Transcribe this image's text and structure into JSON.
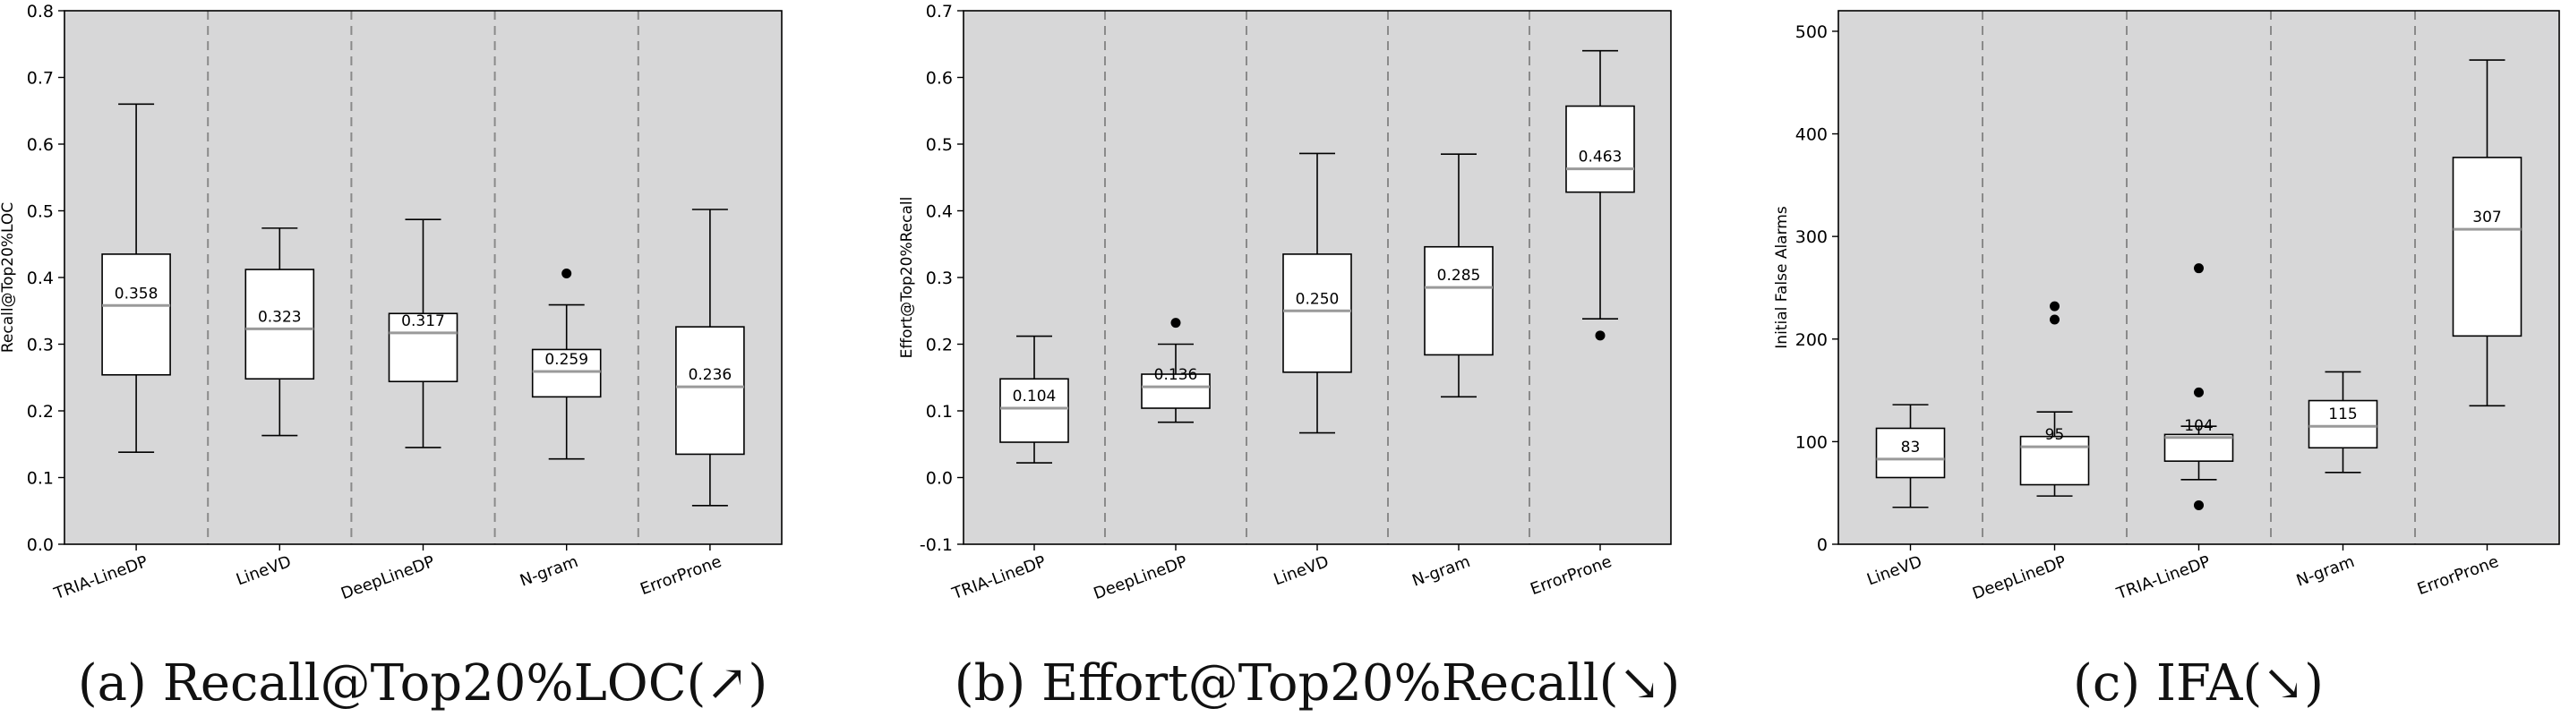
{
  "chart_data": [
    {
      "type": "box",
      "caption": "(a) Recall@Top20%LOC(↗)",
      "ylabel": "Recall@Top20%LOC",
      "ylim": [
        0.0,
        0.8
      ],
      "yticks": [
        "0.0",
        "0.1",
        "0.2",
        "0.3",
        "0.4",
        "0.5",
        "0.6",
        "0.7",
        "0.8"
      ],
      "ytick_values": [
        0.0,
        0.1,
        0.2,
        0.3,
        0.4,
        0.5,
        0.6,
        0.7,
        0.8
      ],
      "categories": [
        "TRIA-LineDP",
        "LineVD",
        "DeepLineDP",
        "N-gram",
        "ErrorProne"
      ],
      "boxes": [
        {
          "whisker_low": 0.138,
          "q1": 0.254,
          "median": 0.358,
          "q3": 0.435,
          "whisker_high": 0.66,
          "label": "0.358",
          "outliers": []
        },
        {
          "whisker_low": 0.163,
          "q1": 0.248,
          "median": 0.323,
          "q3": 0.412,
          "whisker_high": 0.474,
          "label": "0.323",
          "outliers": []
        },
        {
          "whisker_low": 0.145,
          "q1": 0.244,
          "median": 0.317,
          "q3": 0.346,
          "whisker_high": 0.487,
          "label": "0.317",
          "outliers": []
        },
        {
          "whisker_low": 0.128,
          "q1": 0.221,
          "median": 0.259,
          "q3": 0.292,
          "whisker_high": 0.359,
          "label": "0.259",
          "outliers": [
            0.406
          ]
        },
        {
          "whisker_low": 0.058,
          "q1": 0.135,
          "median": 0.236,
          "q3": 0.326,
          "whisker_high": 0.502,
          "label": "0.236",
          "outliers": []
        }
      ]
    },
    {
      "type": "box",
      "caption": "(b) Effort@Top20%Recall(↘)",
      "ylabel": "Effort@Top20%Recall",
      "ylim": [
        -0.1,
        0.7
      ],
      "yticks": [
        "-0.1",
        "0.0",
        "0.1",
        "0.2",
        "0.3",
        "0.4",
        "0.5",
        "0.6",
        "0.7"
      ],
      "ytick_values": [
        -0.1,
        0.0,
        0.1,
        0.2,
        0.3,
        0.4,
        0.5,
        0.6,
        0.7
      ],
      "categories": [
        "TRIA-LineDP",
        "DeepLineDP",
        "LineVD",
        "N-gram",
        "ErrorProne"
      ],
      "boxes": [
        {
          "whisker_low": 0.022,
          "q1": 0.053,
          "median": 0.104,
          "q3": 0.148,
          "whisker_high": 0.212,
          "label": "0.104",
          "outliers": []
        },
        {
          "whisker_low": 0.083,
          "q1": 0.104,
          "median": 0.136,
          "q3": 0.155,
          "whisker_high": 0.2,
          "label": "0.136",
          "outliers": [
            0.232
          ]
        },
        {
          "whisker_low": 0.067,
          "q1": 0.158,
          "median": 0.25,
          "q3": 0.335,
          "whisker_high": 0.486,
          "label": "0.250",
          "outliers": []
        },
        {
          "whisker_low": 0.121,
          "q1": 0.184,
          "median": 0.285,
          "q3": 0.346,
          "whisker_high": 0.485,
          "label": "0.285",
          "outliers": []
        },
        {
          "whisker_low": 0.238,
          "q1": 0.428,
          "median": 0.463,
          "q3": 0.557,
          "whisker_high": 0.64,
          "label": "0.463",
          "outliers": [
            0.213
          ]
        }
      ]
    },
    {
      "type": "box",
      "caption": "(c) IFA(↘)",
      "ylabel": "Initial False Alarms",
      "ylim": [
        0,
        520
      ],
      "yticks": [
        "0",
        "100",
        "200",
        "300",
        "400",
        "500"
      ],
      "ytick_values": [
        0,
        100,
        200,
        300,
        400,
        500
      ],
      "categories": [
        "LineVD",
        "DeepLineDP",
        "TRIA-LineDP",
        "N-gram",
        "ErrorProne"
      ],
      "boxes": [
        {
          "whisker_low": 36,
          "q1": 65,
          "median": 83,
          "q3": 113,
          "whisker_high": 136,
          "label": "83",
          "outliers": []
        },
        {
          "whisker_low": 47,
          "q1": 58,
          "median": 95,
          "q3": 105,
          "whisker_high": 129,
          "label": "95",
          "outliers": [
            219,
            232
          ]
        },
        {
          "whisker_low": 63,
          "q1": 81,
          "median": 104,
          "q3": 107,
          "whisker_high": 115,
          "label": "104",
          "outliers": [
            38,
            148,
            269
          ]
        },
        {
          "whisker_low": 70,
          "q1": 94,
          "median": 115,
          "q3": 140,
          "whisker_high": 168,
          "label": "115",
          "outliers": []
        },
        {
          "whisker_low": 135,
          "q1": 203,
          "median": 307,
          "q3": 377,
          "whisker_high": 472,
          "label": "307",
          "outliers": []
        }
      ]
    }
  ]
}
